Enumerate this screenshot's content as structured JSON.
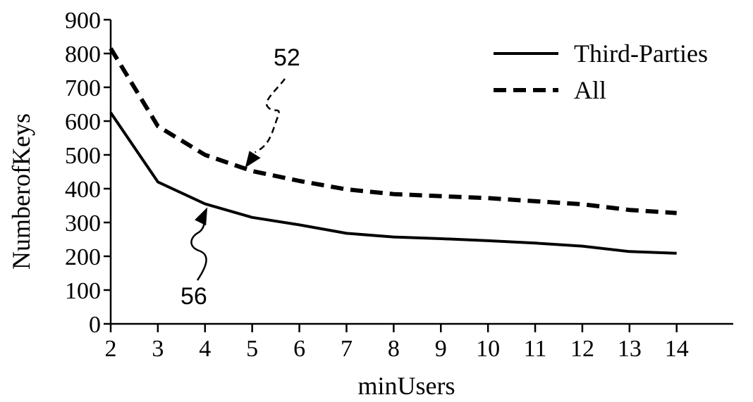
{
  "chart_data": {
    "type": "line",
    "x": [
      2,
      3,
      4,
      5,
      6,
      7,
      8,
      9,
      10,
      11,
      12,
      13,
      14
    ],
    "series": [
      {
        "name": "Third-Parties",
        "style": "solid",
        "values": [
          625,
          420,
          355,
          315,
          293,
          268,
          257,
          252,
          246,
          239,
          230,
          214,
          209
        ]
      },
      {
        "name": "All",
        "style": "dashed",
        "values": [
          815,
          585,
          500,
          452,
          423,
          398,
          384,
          378,
          372,
          363,
          354,
          337,
          328
        ]
      }
    ],
    "xlabel": "minUsers",
    "ylabel": "NumberofKeys",
    "xticks": [
      "2",
      "3",
      "4",
      "5",
      "6",
      "7",
      "8",
      "9",
      "10",
      "11",
      "12",
      "13",
      "14"
    ],
    "yticks": [
      "0",
      "100",
      "200",
      "300",
      "400",
      "500",
      "600",
      "700",
      "800",
      "900"
    ],
    "xlim": [
      2,
      15.2
    ],
    "ylim": [
      0,
      900
    ],
    "grid": false,
    "legend": "top-right",
    "annotations": [
      {
        "label": "52",
        "target_series": "All",
        "target_x": 4.85,
        "target_y": 462
      },
      {
        "label": "56",
        "target_series": "Third-Parties",
        "target_x": 4.05,
        "target_y": 345
      }
    ],
    "colors": {
      "line": "#000000",
      "axis": "#000000"
    }
  }
}
